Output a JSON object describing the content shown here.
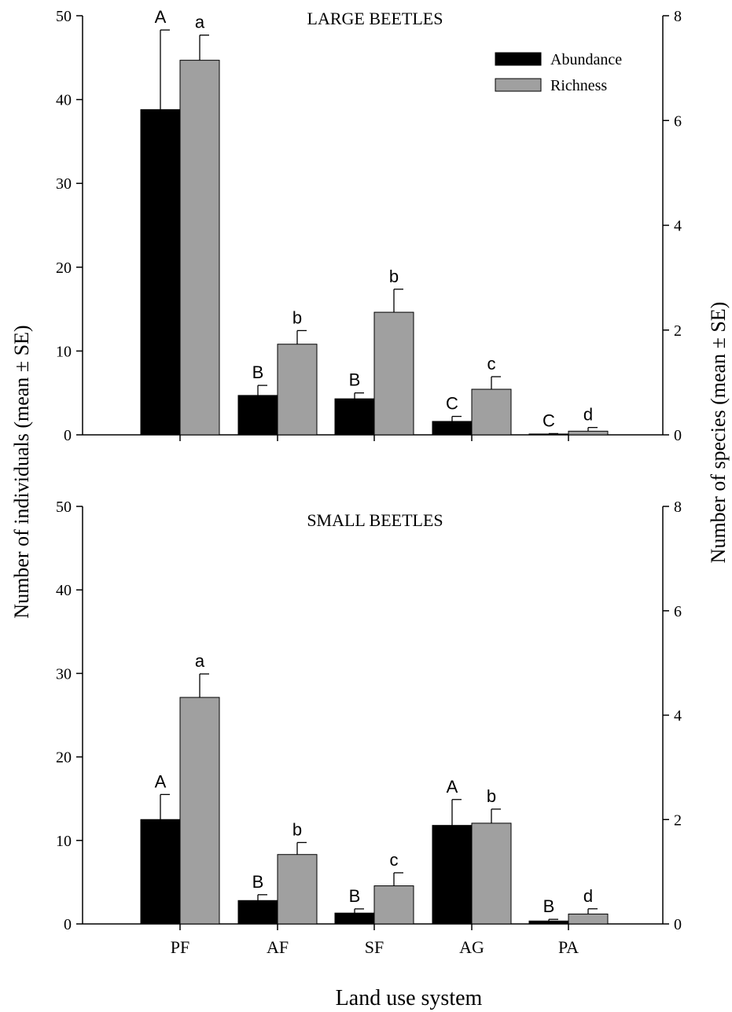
{
  "figure": {
    "y_label_left": "Number of individuals (mean ± SE)",
    "y_label_right": "Number of species (mean ± SE)",
    "x_label": "Land use system"
  },
  "legend": {
    "placement": "top-right",
    "items": [
      {
        "label": "Abundance",
        "color": "#000000"
      },
      {
        "label": "Richness",
        "color": "#a0a0a0"
      }
    ]
  },
  "chart_data": [
    {
      "type": "bar",
      "title": "LARGE BEETLES",
      "categories": [
        "PF",
        "AF",
        "SF",
        "AG",
        "PA"
      ],
      "y_left_lim": [
        0,
        50
      ],
      "y_left_ticks": [
        0,
        10,
        20,
        30,
        40,
        50
      ],
      "y_right_lim": [
        0,
        8
      ],
      "y_right_ticks": [
        0,
        2,
        4,
        6,
        8
      ],
      "series": [
        {
          "name": "Abundance",
          "axis": "left",
          "color": "#000000",
          "values": [
            38.8,
            4.7,
            4.3,
            1.6,
            0.1
          ],
          "errors": [
            9.5,
            1.2,
            0.7,
            0.6,
            0.05
          ],
          "letters": [
            "A",
            "B",
            "B",
            "C",
            "C"
          ]
        },
        {
          "name": "Richness",
          "axis": "right",
          "color": "#a0a0a0",
          "values": [
            7.15,
            1.73,
            2.34,
            0.87,
            0.07
          ],
          "errors": [
            0.48,
            0.26,
            0.44,
            0.24,
            0.07
          ],
          "letters": [
            "a",
            "b",
            "b",
            "c",
            "d"
          ]
        }
      ]
    },
    {
      "type": "bar",
      "title": "SMALL BEETLES",
      "categories": [
        "PF",
        "AF",
        "SF",
        "AG",
        "PA"
      ],
      "x_ticks": [
        "PF",
        "AF",
        "SF",
        "AG",
        "PA"
      ],
      "y_left_lim": [
        0,
        50
      ],
      "y_left_ticks": [
        0,
        10,
        20,
        30,
        40,
        50
      ],
      "y_right_lim": [
        0,
        8
      ],
      "y_right_ticks": [
        0,
        2,
        4,
        6,
        8
      ],
      "series": [
        {
          "name": "Abundance",
          "axis": "left",
          "color": "#000000",
          "values": [
            12.5,
            2.8,
            1.3,
            11.8,
            0.35
          ],
          "errors": [
            3.0,
            0.7,
            0.5,
            3.1,
            0.2
          ],
          "letters": [
            "A",
            "B",
            "B",
            "A",
            "B"
          ]
        },
        {
          "name": "Richness",
          "axis": "right",
          "color": "#a0a0a0",
          "values": [
            4.34,
            1.33,
            0.73,
            1.93,
            0.19
          ],
          "errors": [
            0.45,
            0.23,
            0.25,
            0.27,
            0.1
          ],
          "letters": [
            "a",
            "b",
            "c",
            "b",
            "d"
          ]
        }
      ]
    }
  ]
}
